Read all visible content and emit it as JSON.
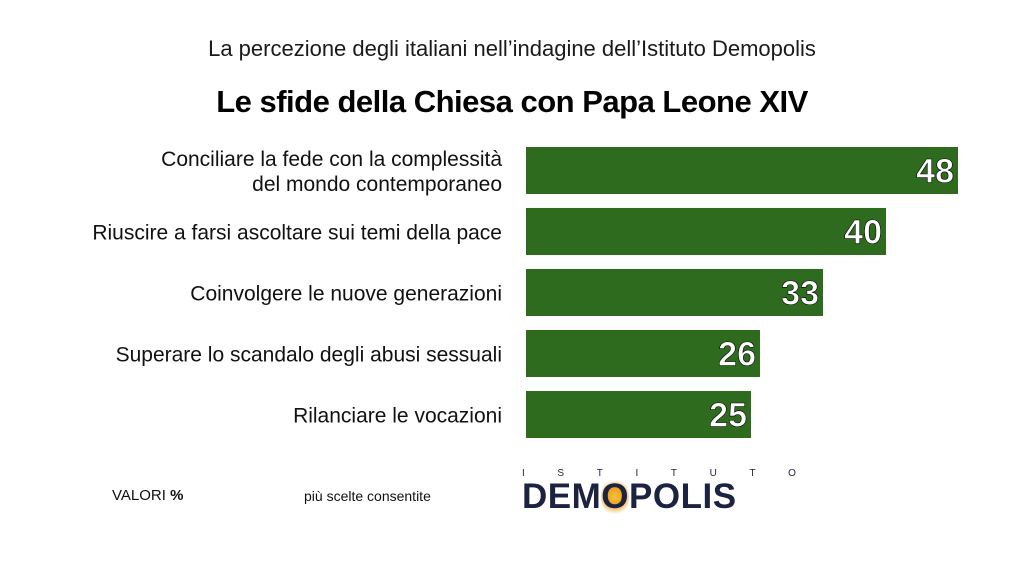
{
  "header": {
    "subtitle": "La percezione degli italiani nell’indagine dell’Istituto Demopolis",
    "title": "Le sfide della Chiesa con Papa Leone XIV"
  },
  "chart_data": {
    "type": "bar",
    "orientation": "horizontal",
    "categories": [
      [
        "Conciliare la fede con la complessità",
        "del mondo contemporaneo"
      ],
      [
        "Riuscire a farsi ascoltare sui temi della pace"
      ],
      [
        "Coinvolgere le nuove generazioni"
      ],
      [
        "Superare lo scandalo degli abusi sessuali"
      ],
      [
        "Rilanciare le vocazioni"
      ]
    ],
    "values": [
      48,
      40,
      33,
      26,
      25
    ],
    "bar_color": "#2e6b1e",
    "label_color": "#ffffff",
    "xlim": [
      0,
      48
    ],
    "grid": false,
    "legend": "none"
  },
  "footer": {
    "values_label": "VALORI",
    "values_unit": "%",
    "note": "più scelte consentite"
  },
  "logo": {
    "top_letters": [
      "I",
      "S",
      "T",
      "I",
      "T",
      "U",
      "T",
      "O"
    ],
    "pre": "DEM",
    "glow_letter": "O",
    "post": "POLIS",
    "colors": {
      "text": "#1b2340",
      "glow": "#f0a020"
    }
  }
}
